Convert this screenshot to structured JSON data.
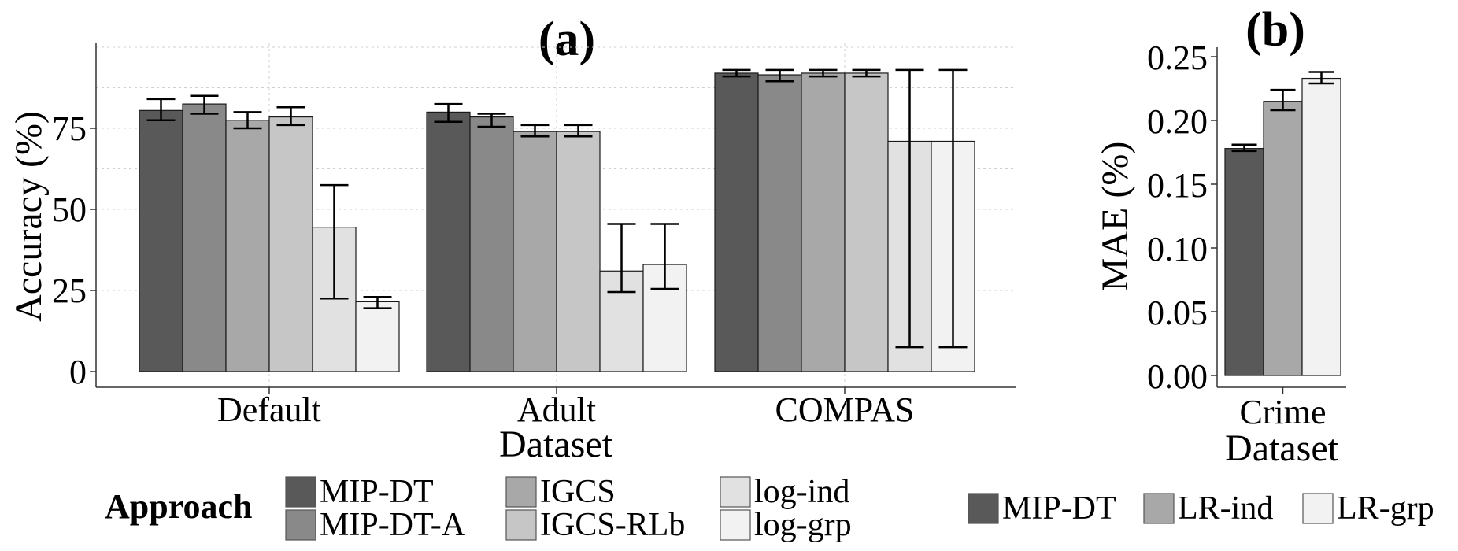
{
  "chart_data": [
    {
      "panel_label": "(a)",
      "type": "bar",
      "ylabel": "Accuracy (%)",
      "xlabel": "Dataset",
      "ylim": [
        0,
        100
      ],
      "yticks": [
        0,
        25,
        50,
        75
      ],
      "grid": true,
      "categories": [
        "Default",
        "Adult",
        "COMPAS"
      ],
      "series": [
        {
          "name": "MIP-DT",
          "color": "#595959",
          "values": [
            80.5,
            80.0,
            92.0
          ],
          "errors": [
            [
              77.5,
              84.0
            ],
            [
              77.0,
              82.5
            ],
            [
              91.0,
              93.0
            ]
          ]
        },
        {
          "name": "MIP-DT-A",
          "color": "#898989",
          "values": [
            82.5,
            78.5,
            91.5
          ],
          "errors": [
            [
              79.5,
              85.0
            ],
            [
              75.5,
              79.5
            ],
            [
              89.5,
              93.0
            ]
          ]
        },
        {
          "name": "IGCS",
          "color": "#a8a8a8",
          "values": [
            77.5,
            74.0,
            92.0
          ],
          "errors": [
            [
              75.0,
              80.0
            ],
            [
              72.5,
              76.0
            ],
            [
              91.0,
              93.0
            ]
          ]
        },
        {
          "name": "IGCS-RLb",
          "color": "#c6c6c6",
          "values": [
            78.5,
            74.0,
            92.0
          ],
          "errors": [
            [
              76.0,
              81.5
            ],
            [
              72.5,
              76.0
            ],
            [
              91.0,
              93.0
            ]
          ]
        },
        {
          "name": "log-ind",
          "color": "#e1e1e1",
          "values": [
            44.5,
            31.0,
            71.0
          ],
          "errors": [
            [
              22.5,
              57.5
            ],
            [
              24.5,
              45.5
            ],
            [
              7.5,
              93.0
            ]
          ]
        },
        {
          "name": "log-grp",
          "color": "#f2f2f2",
          "values": [
            21.5,
            33.0,
            71.0
          ],
          "errors": [
            [
              19.5,
              23.0
            ],
            [
              25.5,
              45.5
            ],
            [
              7.5,
              93.0
            ]
          ]
        }
      ],
      "legend": {
        "title": "Approach",
        "position": "bottom"
      }
    },
    {
      "panel_label": "(b)",
      "type": "bar",
      "ylabel": "MAE (%)",
      "xlabel": "Dataset",
      "ylim": [
        0,
        0.25
      ],
      "yticks": [
        "0.00",
        "0.05",
        "0.10",
        "0.15",
        "0.20",
        "0.25"
      ],
      "grid": false,
      "categories": [
        "Crime"
      ],
      "series": [
        {
          "name": "MIP-DT",
          "color": "#595959",
          "values": [
            0.178
          ],
          "errors": [
            [
              0.176,
              0.181
            ]
          ]
        },
        {
          "name": "LR-ind",
          "color": "#a8a8a8",
          "values": [
            0.215
          ],
          "errors": [
            [
              0.208,
              0.224
            ]
          ]
        },
        {
          "name": "LR-grp",
          "color": "#f2f2f2",
          "values": [
            0.233
          ],
          "errors": [
            [
              0.229,
              0.238
            ]
          ]
        }
      ],
      "legend": {
        "title": "",
        "position": "bottom"
      }
    }
  ]
}
